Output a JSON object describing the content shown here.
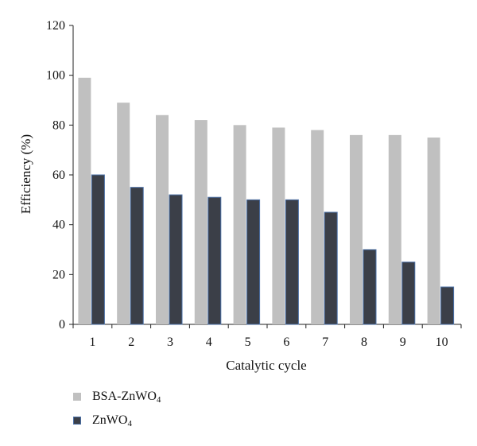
{
  "chart_data": {
    "type": "bar",
    "categories": [
      "1",
      "2",
      "3",
      "4",
      "5",
      "6",
      "7",
      "8",
      "9",
      "10"
    ],
    "series": [
      {
        "name": "BSA-ZnWO4",
        "label_main": "BSA-ZnWO",
        "label_sub": "4",
        "color": "#c0c0c0",
        "values": [
          99,
          89,
          84,
          82,
          80,
          79,
          78,
          76,
          76,
          75
        ]
      },
      {
        "name": "ZnWO4",
        "label_main": "ZnWO",
        "label_sub": "4",
        "color": "#3b3f48",
        "edge_color": "#4a6fa5",
        "values": [
          60,
          55,
          52,
          51,
          50,
          50,
          45,
          30,
          25,
          15
        ]
      }
    ],
    "xlabel": "Catalytic cycle",
    "ylabel": "Efficiency (%)",
    "ylim": [
      0,
      120
    ],
    "yticks": [
      0,
      20,
      40,
      60,
      80,
      100,
      120
    ],
    "grid": false,
    "legend_position": "bottom-left"
  }
}
